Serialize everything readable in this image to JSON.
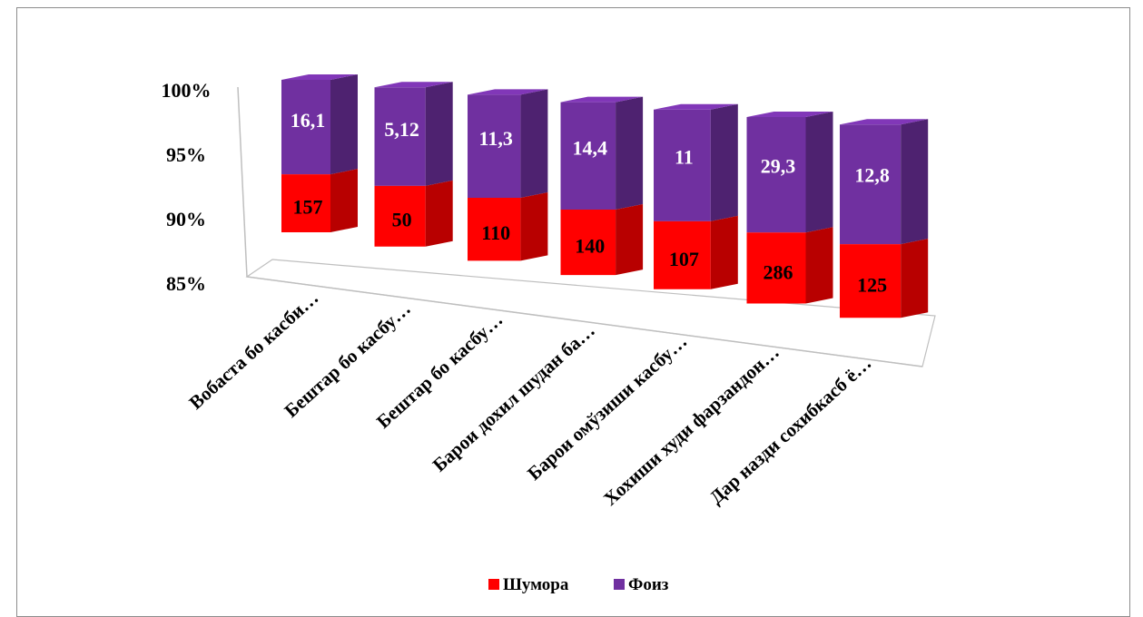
{
  "chart_data": {
    "type": "bar",
    "stacked": "percent",
    "three_d": true,
    "categories": [
      "Вобаста бо касби…",
      "Бештар бо касбу…",
      "Бештар бо касбу…",
      "Барои дохил шудан ба…",
      "Барои омўзиши касбу…",
      "Хохиши худи фарзандон…",
      "Дар назди сохибкасб ё…"
    ],
    "series": [
      {
        "name": "Шумора",
        "color": "#ff0000",
        "values": [
          157,
          50,
          110,
          140,
          107,
          286,
          125
        ]
      },
      {
        "name": "Фоиз",
        "color": "#7030a0",
        "values": [
          16.1,
          5.12,
          11.3,
          14.4,
          11,
          29.3,
          12.8
        ]
      }
    ],
    "data_labels": {
      "Шумора": [
        "157",
        "50",
        "110",
        "140",
        "107",
        "286",
        "125"
      ],
      "Фоиз": [
        "16,1",
        "5,12",
        "11,3",
        "14,4",
        "11",
        "29,3",
        "12,8"
      ]
    },
    "y_ticks": [
      "85%",
      "90%",
      "95%",
      "100%"
    ],
    "ylim": [
      0.85,
      1.0
    ],
    "legend": {
      "position": "bottom",
      "items": [
        "Шумора",
        "Фоиз"
      ]
    },
    "grid": false
  }
}
